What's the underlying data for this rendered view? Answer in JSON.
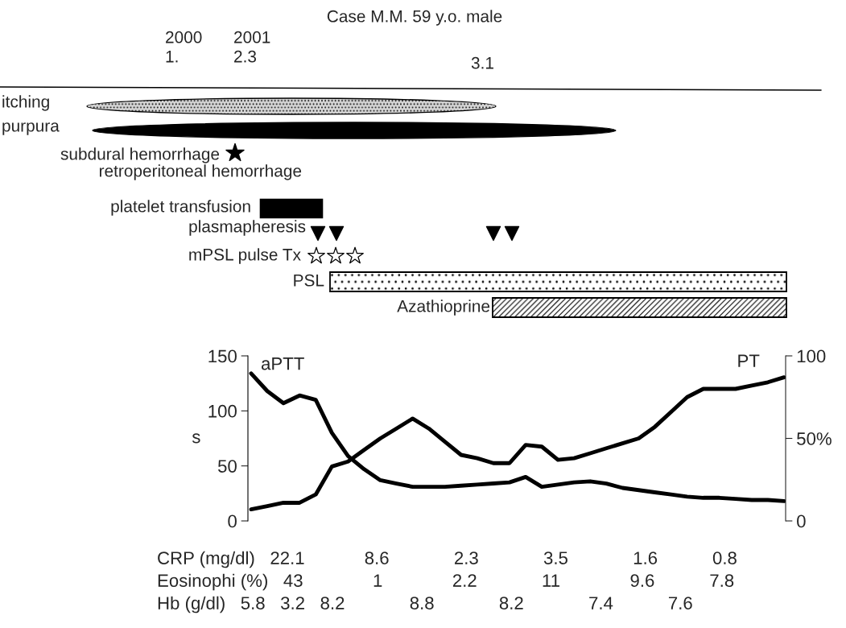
{
  "chart_data": [
    {
      "type": "other",
      "title": "Case M.M. 59 y.o. male",
      "annotations": [
        "2000",
        "1.",
        "2001",
        "2.3",
        "3.1",
        "itching",
        "purpura",
        "subdural hemorrhage",
        "retroperitoneal hemorrhage",
        "platelet transfusion",
        "plasmapheresis",
        "mPSL pulse Tx",
        "PSL",
        "Azathioprine"
      ]
    },
    {
      "type": "line",
      "ylabel": "s",
      "categories": [
        null,
        null,
        null,
        null,
        null,
        null,
        null,
        null,
        null,
        null,
        null,
        null,
        null,
        null,
        null,
        null,
        null,
        null,
        null,
        null,
        null,
        null,
        null,
        null,
        null,
        null,
        null,
        null,
        null,
        null,
        null,
        null,
        null,
        null
      ],
      "series": [
        {
          "name": "aPTT",
          "color": "#000000",
          "values": [
            134,
            118,
            107,
            114,
            110,
            80,
            59,
            47,
            37,
            34,
            31,
            31,
            31,
            32,
            33,
            34,
            35,
            40,
            31,
            33,
            35,
            36,
            34,
            30,
            28,
            26,
            24,
            22,
            21,
            21,
            20,
            19,
            19,
            18
          ]
        },
        {
          "name": "PT",
          "color": "#000000",
          "axis": "y2",
          "values": [
            7,
            9,
            11,
            11,
            16,
            33,
            36,
            43,
            50,
            56,
            62,
            56,
            48,
            40,
            38,
            35,
            35,
            46,
            45,
            37,
            38,
            41,
            44,
            47,
            50,
            57,
            66,
            75,
            80,
            80,
            80,
            82,
            84,
            87
          ]
        }
      ],
      "ylim": [
        0,
        150
      ],
      "yticks": [
        0,
        50,
        100,
        150
      ],
      "y2lim": [
        0,
        100
      ],
      "y2ticks": [
        0,
        {
          "value": 50,
          "label": "50%"
        },
        100
      ],
      "grid": false,
      "legend": false,
      "marker": "none",
      "line_style": "solid"
    },
    {
      "type": "other",
      "annotations": [
        "CRP (mg/dl)   22.1            8.6             2.3             3.5             1.6           0.8",
        "Eosinophi (%)   43              1              2.2             11              9.6           7.8",
        "Hb (g/dl)   5.8   3.2   8.2             8.8             8.2             7.4           7.6"
      ]
    }
  ]
}
